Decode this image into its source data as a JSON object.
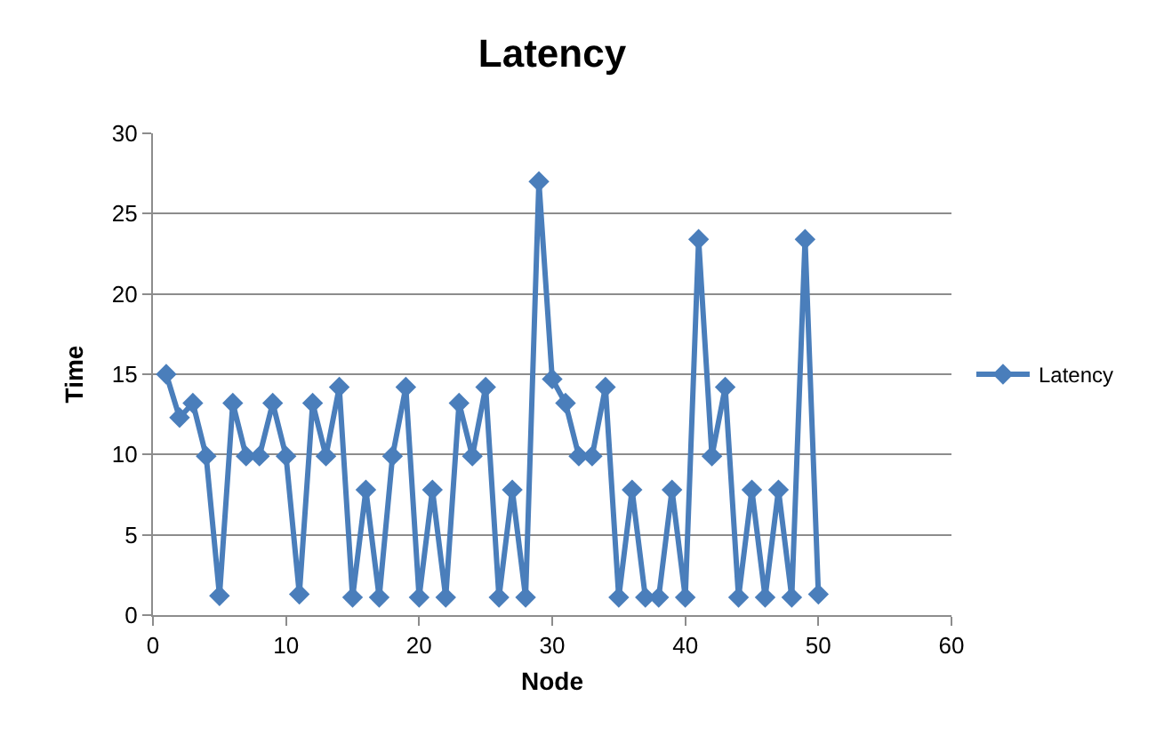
{
  "chart_data": {
    "type": "line",
    "title": "Latency",
    "xlabel": "Node",
    "ylabel": "Time",
    "x": [
      1,
      2,
      3,
      4,
      5,
      6,
      7,
      8,
      9,
      10,
      11,
      12,
      13,
      14,
      15,
      16,
      17,
      18,
      19,
      20,
      21,
      22,
      23,
      24,
      25,
      26,
      27,
      28,
      29,
      30,
      31,
      32,
      33,
      34,
      35,
      36,
      37,
      38,
      39,
      40,
      41,
      42,
      43,
      44,
      45,
      46,
      47,
      48,
      49,
      50
    ],
    "series": [
      {
        "name": "Latency",
        "color": "#4a7ebb",
        "values": [
          15,
          12.3,
          13.2,
          9.9,
          1.2,
          13.2,
          9.9,
          9.9,
          13.2,
          9.9,
          1.3,
          13.2,
          9.9,
          14.2,
          1.1,
          7.8,
          1.1,
          9.9,
          14.2,
          1.1,
          7.8,
          1.1,
          13.2,
          9.9,
          14.2,
          1.1,
          7.8,
          1.1,
          27,
          14.7,
          13.2,
          9.9,
          9.9,
          14.2,
          1.1,
          7.8,
          1.1,
          1.1,
          7.8,
          1.1,
          23.4,
          9.9,
          14.2,
          1.1,
          7.8,
          1.1,
          7.8,
          1.1,
          23.4,
          1.3
        ]
      }
    ],
    "xlim": [
      0,
      60
    ],
    "xticks": [
      0,
      10,
      20,
      30,
      40,
      50,
      60
    ],
    "ylim": [
      0,
      30
    ],
    "yticks": [
      0,
      5,
      10,
      15,
      20,
      25,
      30
    ],
    "grid": "y",
    "legend": "right",
    "marker": "diamond",
    "line_style": "solid"
  }
}
